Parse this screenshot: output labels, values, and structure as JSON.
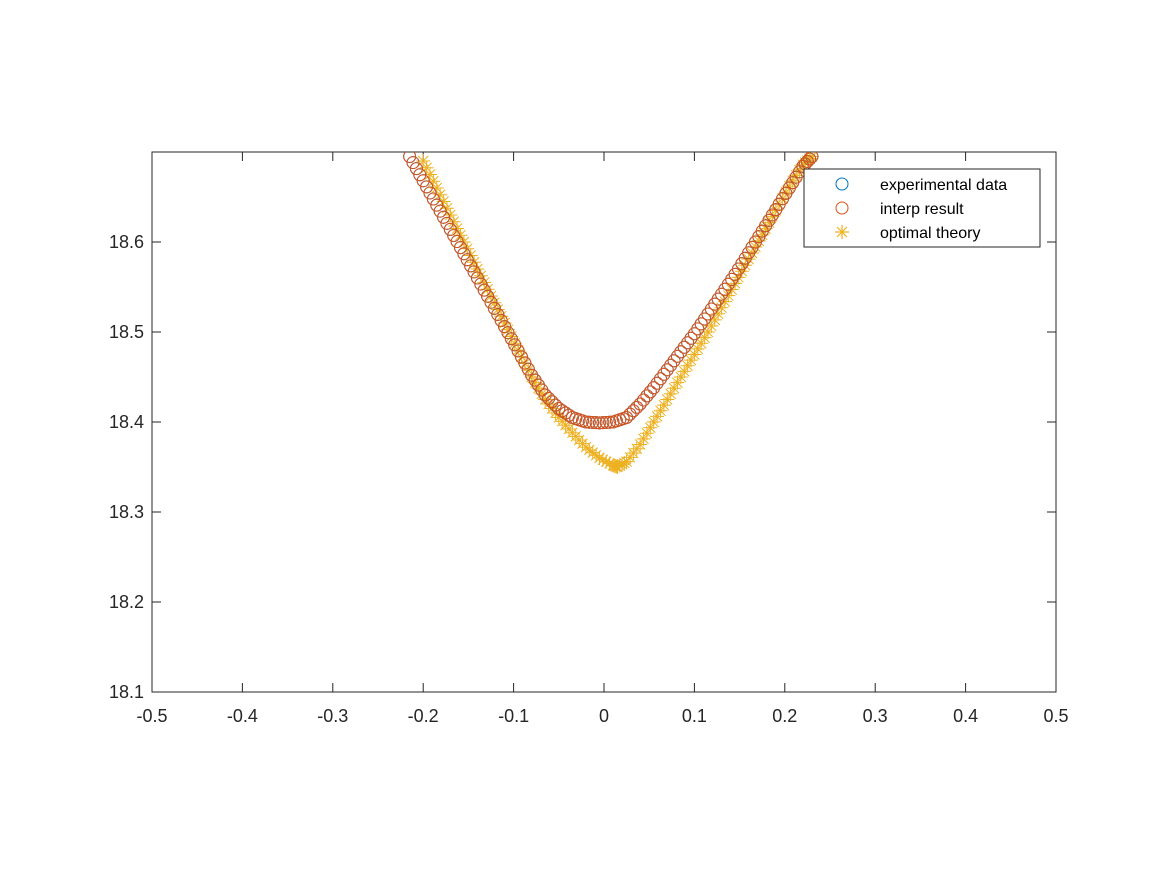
{
  "chart_data": {
    "type": "scatter",
    "title": "",
    "xlabel": "",
    "ylabel": "",
    "xlim": [
      -0.5,
      0.5
    ],
    "ylim": [
      18.1,
      18.7
    ],
    "xticks": [
      "-0.5",
      "-0.4",
      "-0.3",
      "-0.2",
      "-0.1",
      "0",
      "0.1",
      "0.2",
      "0.3",
      "0.4",
      "0.5"
    ],
    "yticks": [
      "18.1",
      "18.2",
      "18.3",
      "18.4",
      "18.5",
      "18.6"
    ],
    "grid": false,
    "legend_position": "top-right",
    "series": [
      {
        "name": "experimental data",
        "marker": "circle",
        "color": "#0072BD",
        "x": [
          -0.215,
          -0.2,
          -0.185,
          -0.17,
          -0.155,
          -0.14,
          -0.125,
          -0.11,
          -0.095,
          -0.08,
          -0.065,
          -0.05,
          -0.035,
          -0.02,
          -0.005,
          0.01,
          0.025,
          0.04,
          0.055,
          0.07,
          0.085,
          0.1,
          0.115,
          0.13,
          0.145,
          0.16,
          0.175,
          0.19,
          0.205,
          0.22,
          0.23
        ],
        "y": [
          18.695,
          18.668,
          18.641,
          18.614,
          18.587,
          18.56,
          18.533,
          18.506,
          18.479,
          18.452,
          18.43,
          18.415,
          18.405,
          18.4,
          18.399,
          18.4,
          18.405,
          18.42,
          18.438,
          18.458,
          18.478,
          18.498,
          18.52,
          18.542,
          18.564,
          18.588,
          18.612,
          18.636,
          18.66,
          18.684,
          18.695
        ]
      },
      {
        "name": "interp result",
        "marker": "circle",
        "color": "#D95319",
        "x": [
          -0.215,
          -0.2,
          -0.185,
          -0.17,
          -0.155,
          -0.14,
          -0.125,
          -0.11,
          -0.095,
          -0.08,
          -0.065,
          -0.05,
          -0.035,
          -0.02,
          -0.005,
          0.01,
          0.025,
          0.04,
          0.055,
          0.07,
          0.085,
          0.1,
          0.115,
          0.13,
          0.145,
          0.16,
          0.175,
          0.19,
          0.205,
          0.22,
          0.23
        ],
        "y": [
          18.695,
          18.668,
          18.641,
          18.614,
          18.587,
          18.56,
          18.533,
          18.506,
          18.479,
          18.452,
          18.43,
          18.415,
          18.405,
          18.4,
          18.399,
          18.4,
          18.405,
          18.42,
          18.438,
          18.458,
          18.478,
          18.498,
          18.52,
          18.542,
          18.564,
          18.588,
          18.612,
          18.636,
          18.66,
          18.684,
          18.695
        ]
      },
      {
        "name": "optimal theory",
        "marker": "asterisk",
        "color": "#EDB120",
        "x": [
          -0.2,
          -0.185,
          -0.17,
          -0.155,
          -0.14,
          -0.125,
          -0.11,
          -0.095,
          -0.08,
          -0.065,
          -0.05,
          -0.035,
          -0.02,
          -0.005,
          0.01,
          0.015,
          0.025,
          0.04,
          0.055,
          0.07,
          0.085,
          0.1,
          0.115,
          0.13,
          0.145,
          0.16,
          0.175,
          0.19,
          0.205,
          0.22,
          0.23
        ],
        "y": [
          18.69,
          18.66,
          18.63,
          18.6,
          18.57,
          18.54,
          18.51,
          18.48,
          18.45,
          18.425,
          18.405,
          18.388,
          18.372,
          18.36,
          18.352,
          18.35,
          18.356,
          18.375,
          18.4,
          18.425,
          18.45,
          18.475,
          18.5,
          18.527,
          18.554,
          18.581,
          18.608,
          18.635,
          18.662,
          18.686,
          18.695
        ]
      }
    ]
  }
}
